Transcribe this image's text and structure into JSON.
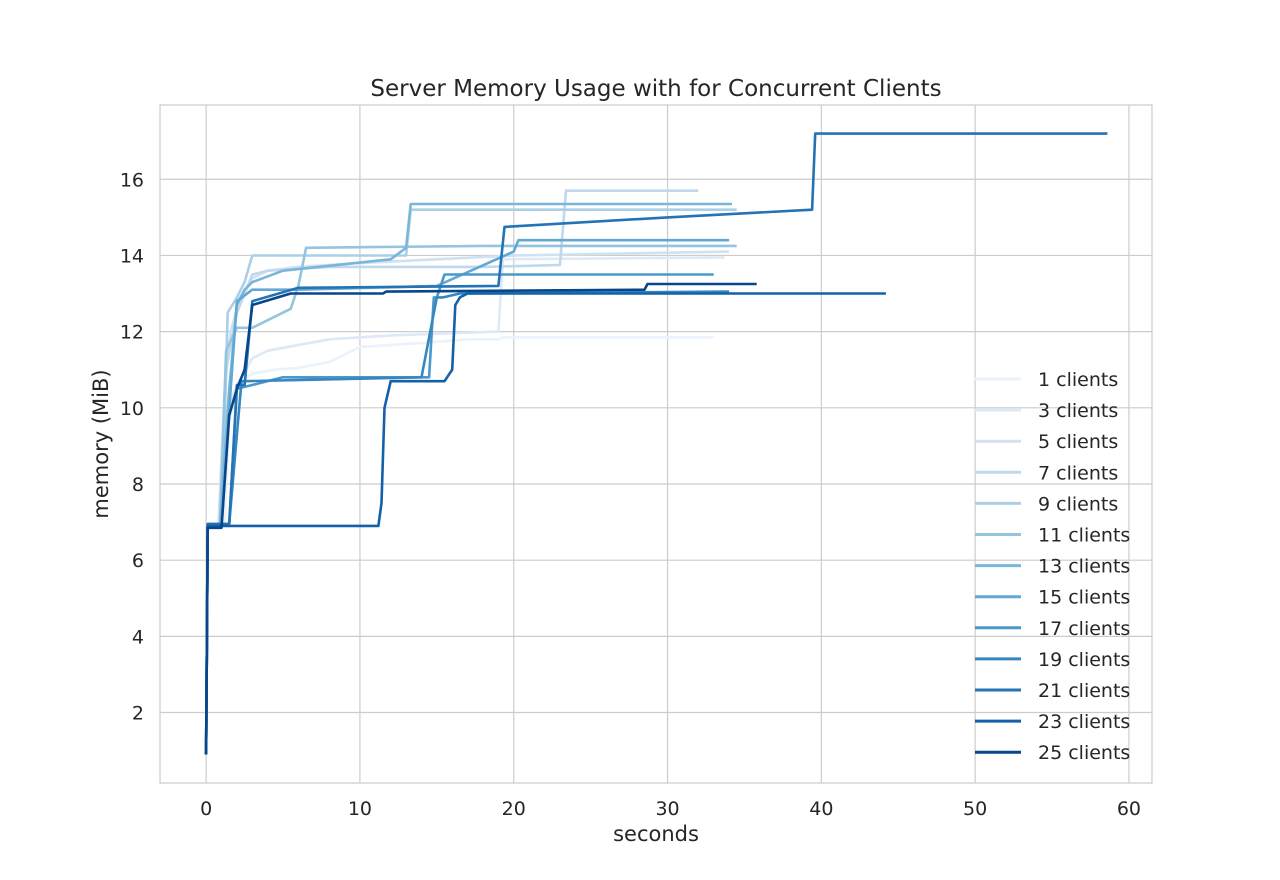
{
  "chart_data": {
    "type": "line",
    "title": "Server Memory Usage with for Concurrent Clients",
    "xlabel": "seconds",
    "ylabel": "memory (MiB)",
    "xlim": [
      -3,
      61.5
    ],
    "ylim": [
      0.15,
      17.95
    ],
    "xticks": [
      0,
      10,
      20,
      30,
      40,
      50,
      60
    ],
    "yticks": [
      2,
      4,
      6,
      8,
      10,
      12,
      14,
      16
    ],
    "grid": true,
    "legend_position": "right",
    "series": [
      {
        "name": "1 clients",
        "color": "#eaf2fb",
        "x": [
          0,
          0.1,
          0.6,
          1.2,
          1.5,
          2.0,
          3.0,
          4.5,
          6.0,
          8.0,
          10.0,
          14.0,
          17.0,
          19.0,
          19.3,
          33.0
        ],
        "y": [
          0.9,
          6.85,
          6.85,
          6.9,
          9.6,
          10.6,
          10.9,
          11.0,
          11.05,
          11.2,
          11.6,
          11.7,
          11.8,
          11.8,
          11.85,
          11.85
        ]
      },
      {
        "name": "3 clients",
        "color": "#dde9f6",
        "x": [
          0,
          0.1,
          0.8,
          1.3,
          2.0,
          3.0,
          4.0,
          8.0,
          12.0,
          19.0,
          19.3,
          33.7
        ],
        "y": [
          0.9,
          6.9,
          6.9,
          9.9,
          10.6,
          11.3,
          11.5,
          11.8,
          11.9,
          12.0,
          13.9,
          13.95
        ]
      },
      {
        "name": "5 clients",
        "color": "#cfe1f2",
        "x": [
          0,
          0.1,
          0.8,
          1.2,
          1.6,
          2.2,
          3.0,
          4.0,
          6.0,
          10.0,
          15.0,
          20.0,
          34.0
        ],
        "y": [
          0.9,
          6.9,
          6.9,
          10.5,
          12.0,
          12.9,
          13.4,
          13.6,
          13.7,
          13.8,
          13.9,
          14.0,
          14.1
        ]
      },
      {
        "name": "7 clients",
        "color": "#bfd8ed",
        "x": [
          0,
          0.1,
          1.0,
          1.3,
          2.0,
          3.0,
          4.0,
          8.0,
          13.0,
          18.0,
          23.0,
          23.4,
          32.0
        ],
        "y": [
          0.9,
          6.9,
          6.9,
          11.0,
          12.5,
          13.5,
          13.6,
          13.7,
          13.7,
          13.7,
          13.75,
          15.7,
          15.7
        ]
      },
      {
        "name": "9 clients",
        "color": "#abd0e6",
        "x": [
          0,
          0.1,
          1.0,
          1.4,
          2.0,
          2.5,
          3.0,
          6.0,
          10.0,
          13.0,
          13.3,
          34.5
        ],
        "y": [
          0.9,
          6.9,
          6.9,
          12.5,
          12.9,
          13.3,
          14.0,
          14.0,
          14.0,
          14.0,
          15.2,
          15.2
        ]
      },
      {
        "name": "11 clients",
        "color": "#94c4df",
        "x": [
          0,
          0.1,
          0.9,
          1.3,
          2.0,
          3.0,
          4.0,
          5.5,
          6.0,
          6.5,
          18.0,
          34.5
        ],
        "y": [
          0.9,
          6.9,
          6.9,
          11.5,
          12.1,
          12.1,
          12.3,
          12.6,
          13.2,
          14.2,
          14.25,
          14.25
        ]
      },
      {
        "name": "13 clients",
        "color": "#7ab6d9",
        "x": [
          0,
          0.1,
          0.9,
          1.5,
          2.0,
          2.5,
          3.0,
          5.0,
          12.0,
          13.0,
          13.3,
          34.2
        ],
        "y": [
          0.9,
          6.9,
          6.9,
          10.5,
          12.7,
          13.1,
          13.3,
          13.6,
          13.9,
          14.2,
          15.35,
          15.35
        ]
      },
      {
        "name": "15 clients",
        "color": "#63a8d3",
        "x": [
          0,
          0.1,
          1.0,
          1.6,
          2.0,
          3.0,
          4.0,
          6.0,
          15.0,
          20.0,
          20.3,
          34.0
        ],
        "y": [
          0.9,
          6.9,
          6.9,
          10.5,
          12.8,
          13.1,
          13.1,
          13.1,
          13.2,
          14.1,
          14.4,
          14.4
        ]
      },
      {
        "name": "17 clients",
        "color": "#4a98c9",
        "x": [
          0,
          0.1,
          1.5,
          2.0,
          5.0,
          14.5,
          14.8,
          15.0,
          15.5,
          33.0
        ],
        "y": [
          0.9,
          6.95,
          6.95,
          10.5,
          10.8,
          10.8,
          12.9,
          12.9,
          13.5,
          13.5
        ]
      },
      {
        "name": "19 clients",
        "color": "#3687c0",
        "x": [
          0,
          0.1,
          1.5,
          2.3,
          2.5,
          14.0,
          15.0,
          15.4,
          16.5,
          34.0
        ],
        "y": [
          0.9,
          6.95,
          6.95,
          10.7,
          10.7,
          10.8,
          12.9,
          12.9,
          13.0,
          13.05
        ]
      },
      {
        "name": "21 clients",
        "color": "#2473b5",
        "x": [
          0,
          0.1,
          1.5,
          2.0,
          2.5,
          3.0,
          6.0,
          19.0,
          19.4,
          30.0,
          39.4,
          39.6,
          58.6
        ],
        "y": [
          0.9,
          6.95,
          6.95,
          10.6,
          10.6,
          12.8,
          13.15,
          13.2,
          14.75,
          15.0,
          15.2,
          17.2,
          17.2
        ]
      },
      {
        "name": "23 clients",
        "color": "#1361a8",
        "x": [
          0,
          0.1,
          0.5,
          2.0,
          11.2,
          11.4,
          11.6,
          12.0,
          15.5,
          16.0,
          16.2,
          16.5,
          17.0,
          44.2
        ],
        "y": [
          0.9,
          6.9,
          6.9,
          6.9,
          6.9,
          7.5,
          10.0,
          10.7,
          10.7,
          11.0,
          12.7,
          12.9,
          13.0,
          13.0
        ]
      },
      {
        "name": "25 clients",
        "color": "#08468b",
        "x": [
          0,
          0.1,
          1.0,
          1.5,
          2.0,
          2.5,
          3.0,
          5.5,
          11.5,
          11.7,
          28.5,
          28.7,
          35.8
        ],
        "y": [
          0.9,
          6.85,
          6.85,
          9.8,
          10.5,
          11.0,
          12.7,
          13.0,
          13.0,
          13.05,
          13.1,
          13.25,
          13.25
        ]
      }
    ]
  }
}
